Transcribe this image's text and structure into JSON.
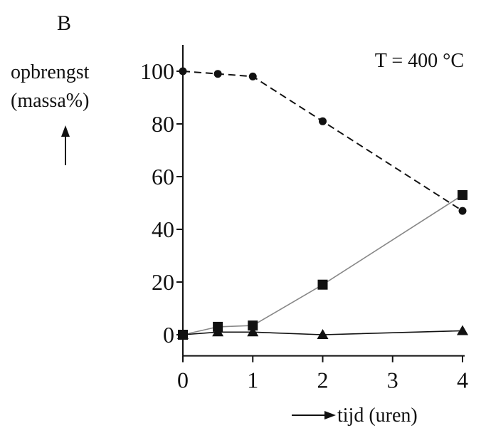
{
  "panel_label": "B",
  "annotation": "T = 400 °C",
  "chart_data": {
    "type": "line",
    "ylabel_lines": [
      "opbrengst",
      "(massa%)"
    ],
    "xlabel": "tijd (uren)",
    "xlim": [
      0,
      4
    ],
    "ylim": [
      -8,
      110
    ],
    "x_ticks": [
      0,
      1,
      2,
      3,
      4
    ],
    "y_ticks": [
      0,
      20,
      40,
      60,
      80,
      100
    ],
    "grid": false,
    "series": [
      {
        "marker": "circle",
        "line_style": "dashed",
        "line_color": "#111111",
        "x": [
          0,
          0.5,
          1,
          2,
          4
        ],
        "values": [
          100,
          99,
          98,
          81,
          47
        ]
      },
      {
        "marker": "square",
        "line_style": "solid",
        "line_color": "#888888",
        "x": [
          0,
          0.5,
          1,
          2,
          4
        ],
        "values": [
          0,
          3,
          3.5,
          19,
          53
        ]
      },
      {
        "marker": "triangle",
        "line_style": "solid",
        "line_color": "#111111",
        "x": [
          0,
          0.5,
          1,
          2,
          4
        ],
        "values": [
          0,
          1,
          1,
          0,
          1.5
        ]
      }
    ]
  }
}
